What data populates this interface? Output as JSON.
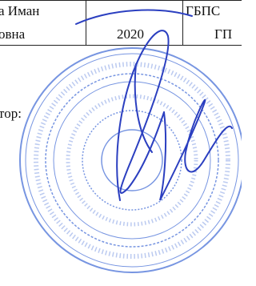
{
  "table": {
    "rows": [
      {
        "name": "а Иман",
        "org": "ГБПС"
      },
      {
        "name": "овна",
        "year": 2020,
        "org": "ГП"
      }
    ]
  },
  "caption": "тор:"
}
